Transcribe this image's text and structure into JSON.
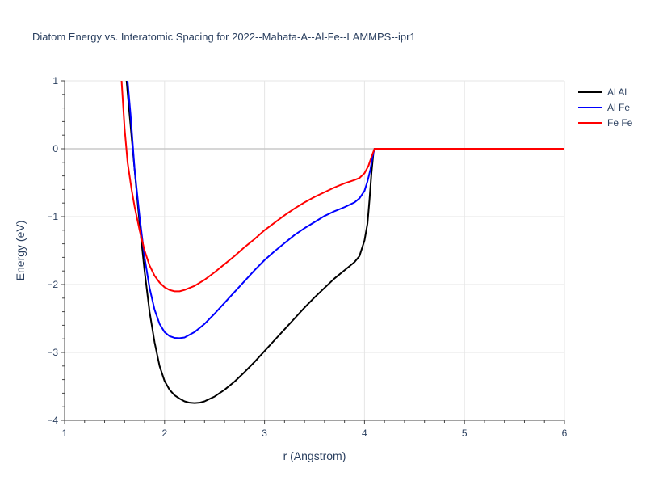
{
  "chart_data": {
    "type": "line",
    "title": "Diatom Energy vs. Interatomic Spacing for 2022--Mahata-A--Al-Fe--LAMMPS--ipr1",
    "xlabel": "r (Angstrom)",
    "ylabel": "Energy (eV)",
    "xlim": [
      1,
      6
    ],
    "ylim": [
      -4,
      1
    ],
    "x_ticks": [
      1,
      2,
      3,
      4,
      5,
      6
    ],
    "y_ticks": [
      1,
      0,
      -1,
      -2,
      -3,
      -4
    ],
    "x_tick_labels": [
      "1",
      "2",
      "3",
      "4",
      "5",
      "6"
    ],
    "y_tick_labels": [
      "1",
      "0",
      "−1",
      "−2",
      "−3",
      "−4"
    ],
    "grid": true,
    "legend_position": "top-right",
    "series": [
      {
        "name": "Al Al",
        "color": "#000000",
        "points": [
          [
            1.55,
            3.5
          ],
          [
            1.62,
            1.0
          ],
          [
            1.65,
            0.5
          ],
          [
            1.7,
            -0.3
          ],
          [
            1.75,
            -1.1
          ],
          [
            1.8,
            -1.8
          ],
          [
            1.85,
            -2.4
          ],
          [
            1.9,
            -2.85
          ],
          [
            1.95,
            -3.2
          ],
          [
            2.0,
            -3.42
          ],
          [
            2.05,
            -3.55
          ],
          [
            2.1,
            -3.63
          ],
          [
            2.15,
            -3.68
          ],
          [
            2.2,
            -3.72
          ],
          [
            2.25,
            -3.74
          ],
          [
            2.3,
            -3.745
          ],
          [
            2.35,
            -3.74
          ],
          [
            2.4,
            -3.72
          ],
          [
            2.5,
            -3.65
          ],
          [
            2.6,
            -3.55
          ],
          [
            2.7,
            -3.43
          ],
          [
            2.8,
            -3.29
          ],
          [
            2.9,
            -3.14
          ],
          [
            3.0,
            -2.98
          ],
          [
            3.1,
            -2.82
          ],
          [
            3.2,
            -2.66
          ],
          [
            3.3,
            -2.5
          ],
          [
            3.4,
            -2.34
          ],
          [
            3.5,
            -2.19
          ],
          [
            3.6,
            -2.05
          ],
          [
            3.7,
            -1.91
          ],
          [
            3.8,
            -1.79
          ],
          [
            3.9,
            -1.67
          ],
          [
            3.95,
            -1.58
          ],
          [
            4.0,
            -1.35
          ],
          [
            4.03,
            -1.1
          ],
          [
            4.05,
            -0.75
          ],
          [
            4.07,
            -0.35
          ],
          [
            4.09,
            -0.05
          ],
          [
            4.1,
            0
          ],
          [
            6.0,
            0
          ]
        ]
      },
      {
        "name": "Al Fe",
        "color": "#0000ff",
        "points": [
          [
            1.55,
            3.0
          ],
          [
            1.63,
            1.0
          ],
          [
            1.66,
            0.5
          ],
          [
            1.7,
            -0.3
          ],
          [
            1.75,
            -1.0
          ],
          [
            1.8,
            -1.6
          ],
          [
            1.85,
            -2.05
          ],
          [
            1.9,
            -2.37
          ],
          [
            1.95,
            -2.58
          ],
          [
            2.0,
            -2.7
          ],
          [
            2.05,
            -2.76
          ],
          [
            2.1,
            -2.785
          ],
          [
            2.15,
            -2.79
          ],
          [
            2.2,
            -2.78
          ],
          [
            2.3,
            -2.7
          ],
          [
            2.4,
            -2.58
          ],
          [
            2.5,
            -2.43
          ],
          [
            2.6,
            -2.27
          ],
          [
            2.7,
            -2.11
          ],
          [
            2.8,
            -1.95
          ],
          [
            2.9,
            -1.79
          ],
          [
            3.0,
            -1.64
          ],
          [
            3.1,
            -1.51
          ],
          [
            3.2,
            -1.39
          ],
          [
            3.3,
            -1.27
          ],
          [
            3.4,
            -1.17
          ],
          [
            3.5,
            -1.08
          ],
          [
            3.6,
            -0.99
          ],
          [
            3.7,
            -0.92
          ],
          [
            3.8,
            -0.86
          ],
          [
            3.9,
            -0.79
          ],
          [
            3.95,
            -0.73
          ],
          [
            4.0,
            -0.62
          ],
          [
            4.03,
            -0.48
          ],
          [
            4.06,
            -0.3
          ],
          [
            4.08,
            -0.12
          ],
          [
            4.1,
            0
          ],
          [
            6.0,
            0
          ]
        ]
      },
      {
        "name": "Fe Fe",
        "color": "#ff0000",
        "points": [
          [
            1.5,
            2.0
          ],
          [
            1.57,
            1.0
          ],
          [
            1.6,
            0.3
          ],
          [
            1.63,
            -0.2
          ],
          [
            1.67,
            -0.6
          ],
          [
            1.7,
            -0.85
          ],
          [
            1.75,
            -1.2
          ],
          [
            1.8,
            -1.5
          ],
          [
            1.85,
            -1.72
          ],
          [
            1.9,
            -1.87
          ],
          [
            1.95,
            -1.97
          ],
          [
            2.0,
            -2.04
          ],
          [
            2.05,
            -2.08
          ],
          [
            2.1,
            -2.1
          ],
          [
            2.15,
            -2.1
          ],
          [
            2.2,
            -2.08
          ],
          [
            2.3,
            -2.02
          ],
          [
            2.4,
            -1.93
          ],
          [
            2.5,
            -1.82
          ],
          [
            2.6,
            -1.7
          ],
          [
            2.7,
            -1.58
          ],
          [
            2.8,
            -1.45
          ],
          [
            2.9,
            -1.33
          ],
          [
            3.0,
            -1.2
          ],
          [
            3.1,
            -1.09
          ],
          [
            3.2,
            -0.98
          ],
          [
            3.3,
            -0.88
          ],
          [
            3.4,
            -0.79
          ],
          [
            3.5,
            -0.71
          ],
          [
            3.6,
            -0.64
          ],
          [
            3.7,
            -0.57
          ],
          [
            3.8,
            -0.51
          ],
          [
            3.9,
            -0.46
          ],
          [
            3.95,
            -0.43
          ],
          [
            4.0,
            -0.36
          ],
          [
            4.04,
            -0.25
          ],
          [
            4.07,
            -0.12
          ],
          [
            4.1,
            0
          ],
          [
            6.0,
            0
          ]
        ]
      }
    ]
  }
}
